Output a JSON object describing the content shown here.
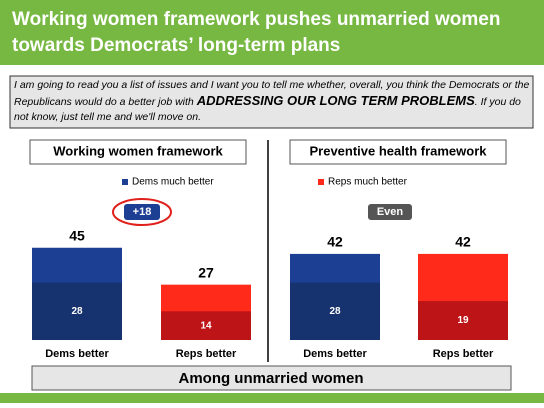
{
  "header": {
    "title": [
      "Working women framework pushes unmarried women",
      "towards Democrats’ long-term plans"
    ]
  },
  "question": [
    "I am going to read you a list of issues and I want you to tell me whether, overall, you think the Democrats or the Republicans would do a better job with ",
    "ADDRESSING OUR LONG TERM PROBLEMS",
    ". If you do not know, just tell me and we'll move on."
  ],
  "chart_data": [
    {
      "type": "bar",
      "title": "Working women framework",
      "categories": [
        "Dems better",
        "Reps better"
      ],
      "values": [
        45,
        27
      ],
      "much_better_values": [
        28,
        14
      ],
      "colors": [
        "#1c3f94",
        "#ff2a1a"
      ],
      "dark_colors": [
        "#17336f",
        "#bd1418"
      ],
      "legend_label": "Dems much better",
      "legend_color": "#1c3f94",
      "annotation": "+18",
      "annotation_color": "#1c3f94",
      "annotation_circled": true
    },
    {
      "type": "bar",
      "title": "Preventive health framework",
      "categories": [
        "Dems better",
        "Reps better"
      ],
      "values": [
        42,
        42
      ],
      "much_better_values": [
        28,
        19
      ],
      "colors": [
        "#1c3f94",
        "#ff2a1a"
      ],
      "dark_colors": [
        "#17336f",
        "#bd1418"
      ],
      "legend_label": "Reps much better",
      "legend_color": "#ff2a1a",
      "annotation": "Even",
      "annotation_color": "#555555",
      "annotation_circled": false
    }
  ],
  "footer": "Among unmarried women"
}
